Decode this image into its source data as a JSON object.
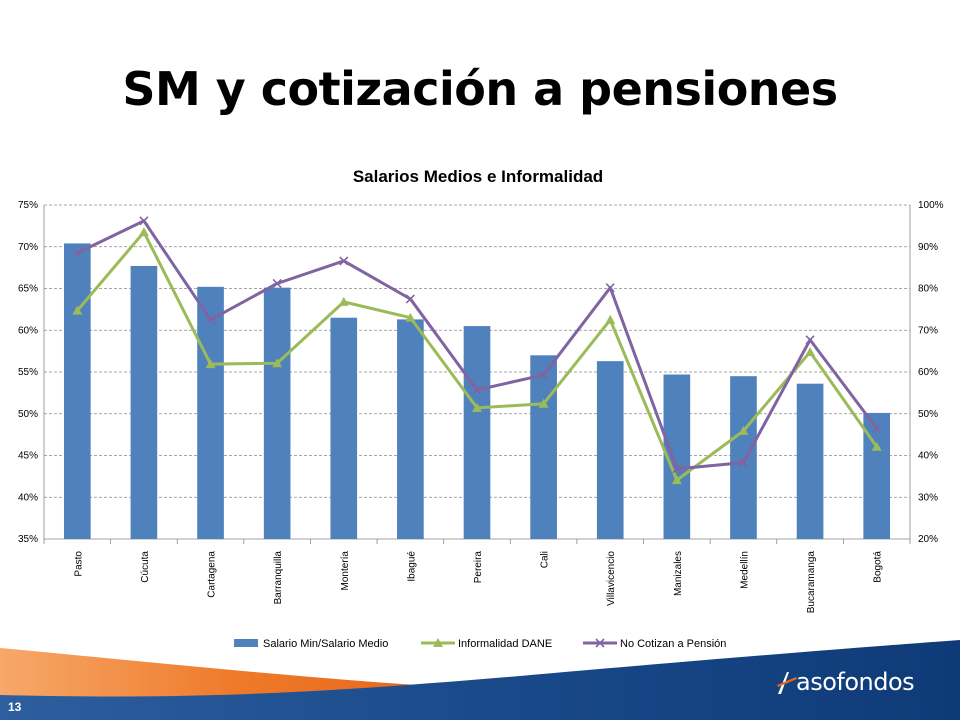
{
  "slide": {
    "title": "SM y cotización a pensiones",
    "page_number": "13",
    "logo_text": "asofondos"
  },
  "chart_data": {
    "type": "bar",
    "title": "Salarios Medios e Informalidad",
    "xlabel": "",
    "ylabel": "",
    "categories": [
      "Pasto",
      "Cúcuta",
      "Cartagena",
      "Barranquilla",
      "Montería",
      "Ibagué",
      "Pereira",
      "Cali",
      "Villavicencio",
      "Manizales",
      "Medellín",
      "Bucaramanga",
      "Bogotá"
    ],
    "y_left": {
      "min": 0.35,
      "max": 0.75,
      "ticks": [
        "35%",
        "40%",
        "45%",
        "50%",
        "55%",
        "60%",
        "65%",
        "70%",
        "75%"
      ]
    },
    "y_right": {
      "min": 0.2,
      "max": 1.0,
      "ticks": [
        "20%",
        "30%",
        "40%",
        "50%",
        "60%",
        "70%",
        "80%",
        "90%",
        "100%"
      ]
    },
    "grid": true,
    "legend_position": "bottom",
    "series": [
      {
        "name": "Salario Min/Salario Medio",
        "type": "bar",
        "axis": "left",
        "color": "#4F81BD",
        "values": [
          0.704,
          0.677,
          0.652,
          0.651,
          0.615,
          0.613,
          0.605,
          0.57,
          0.563,
          0.547,
          0.545,
          0.536,
          0.501
        ]
      },
      {
        "name": "Informalidad DANE",
        "type": "line",
        "axis": "right",
        "color": "#9BBB59",
        "marker": "triangle",
        "values": [
          0.747,
          0.935,
          0.619,
          0.621,
          0.768,
          0.73,
          0.514,
          0.524,
          0.725,
          0.341,
          0.459,
          0.648,
          0.421
        ]
      },
      {
        "name": "No Cotizan a Pensión",
        "type": "line",
        "axis": "right",
        "color": "#8064A2",
        "marker": "x",
        "values": [
          0.885,
          0.962,
          0.725,
          0.812,
          0.866,
          0.775,
          0.557,
          0.593,
          0.802,
          0.368,
          0.383,
          0.677,
          0.465
        ]
      }
    ]
  }
}
